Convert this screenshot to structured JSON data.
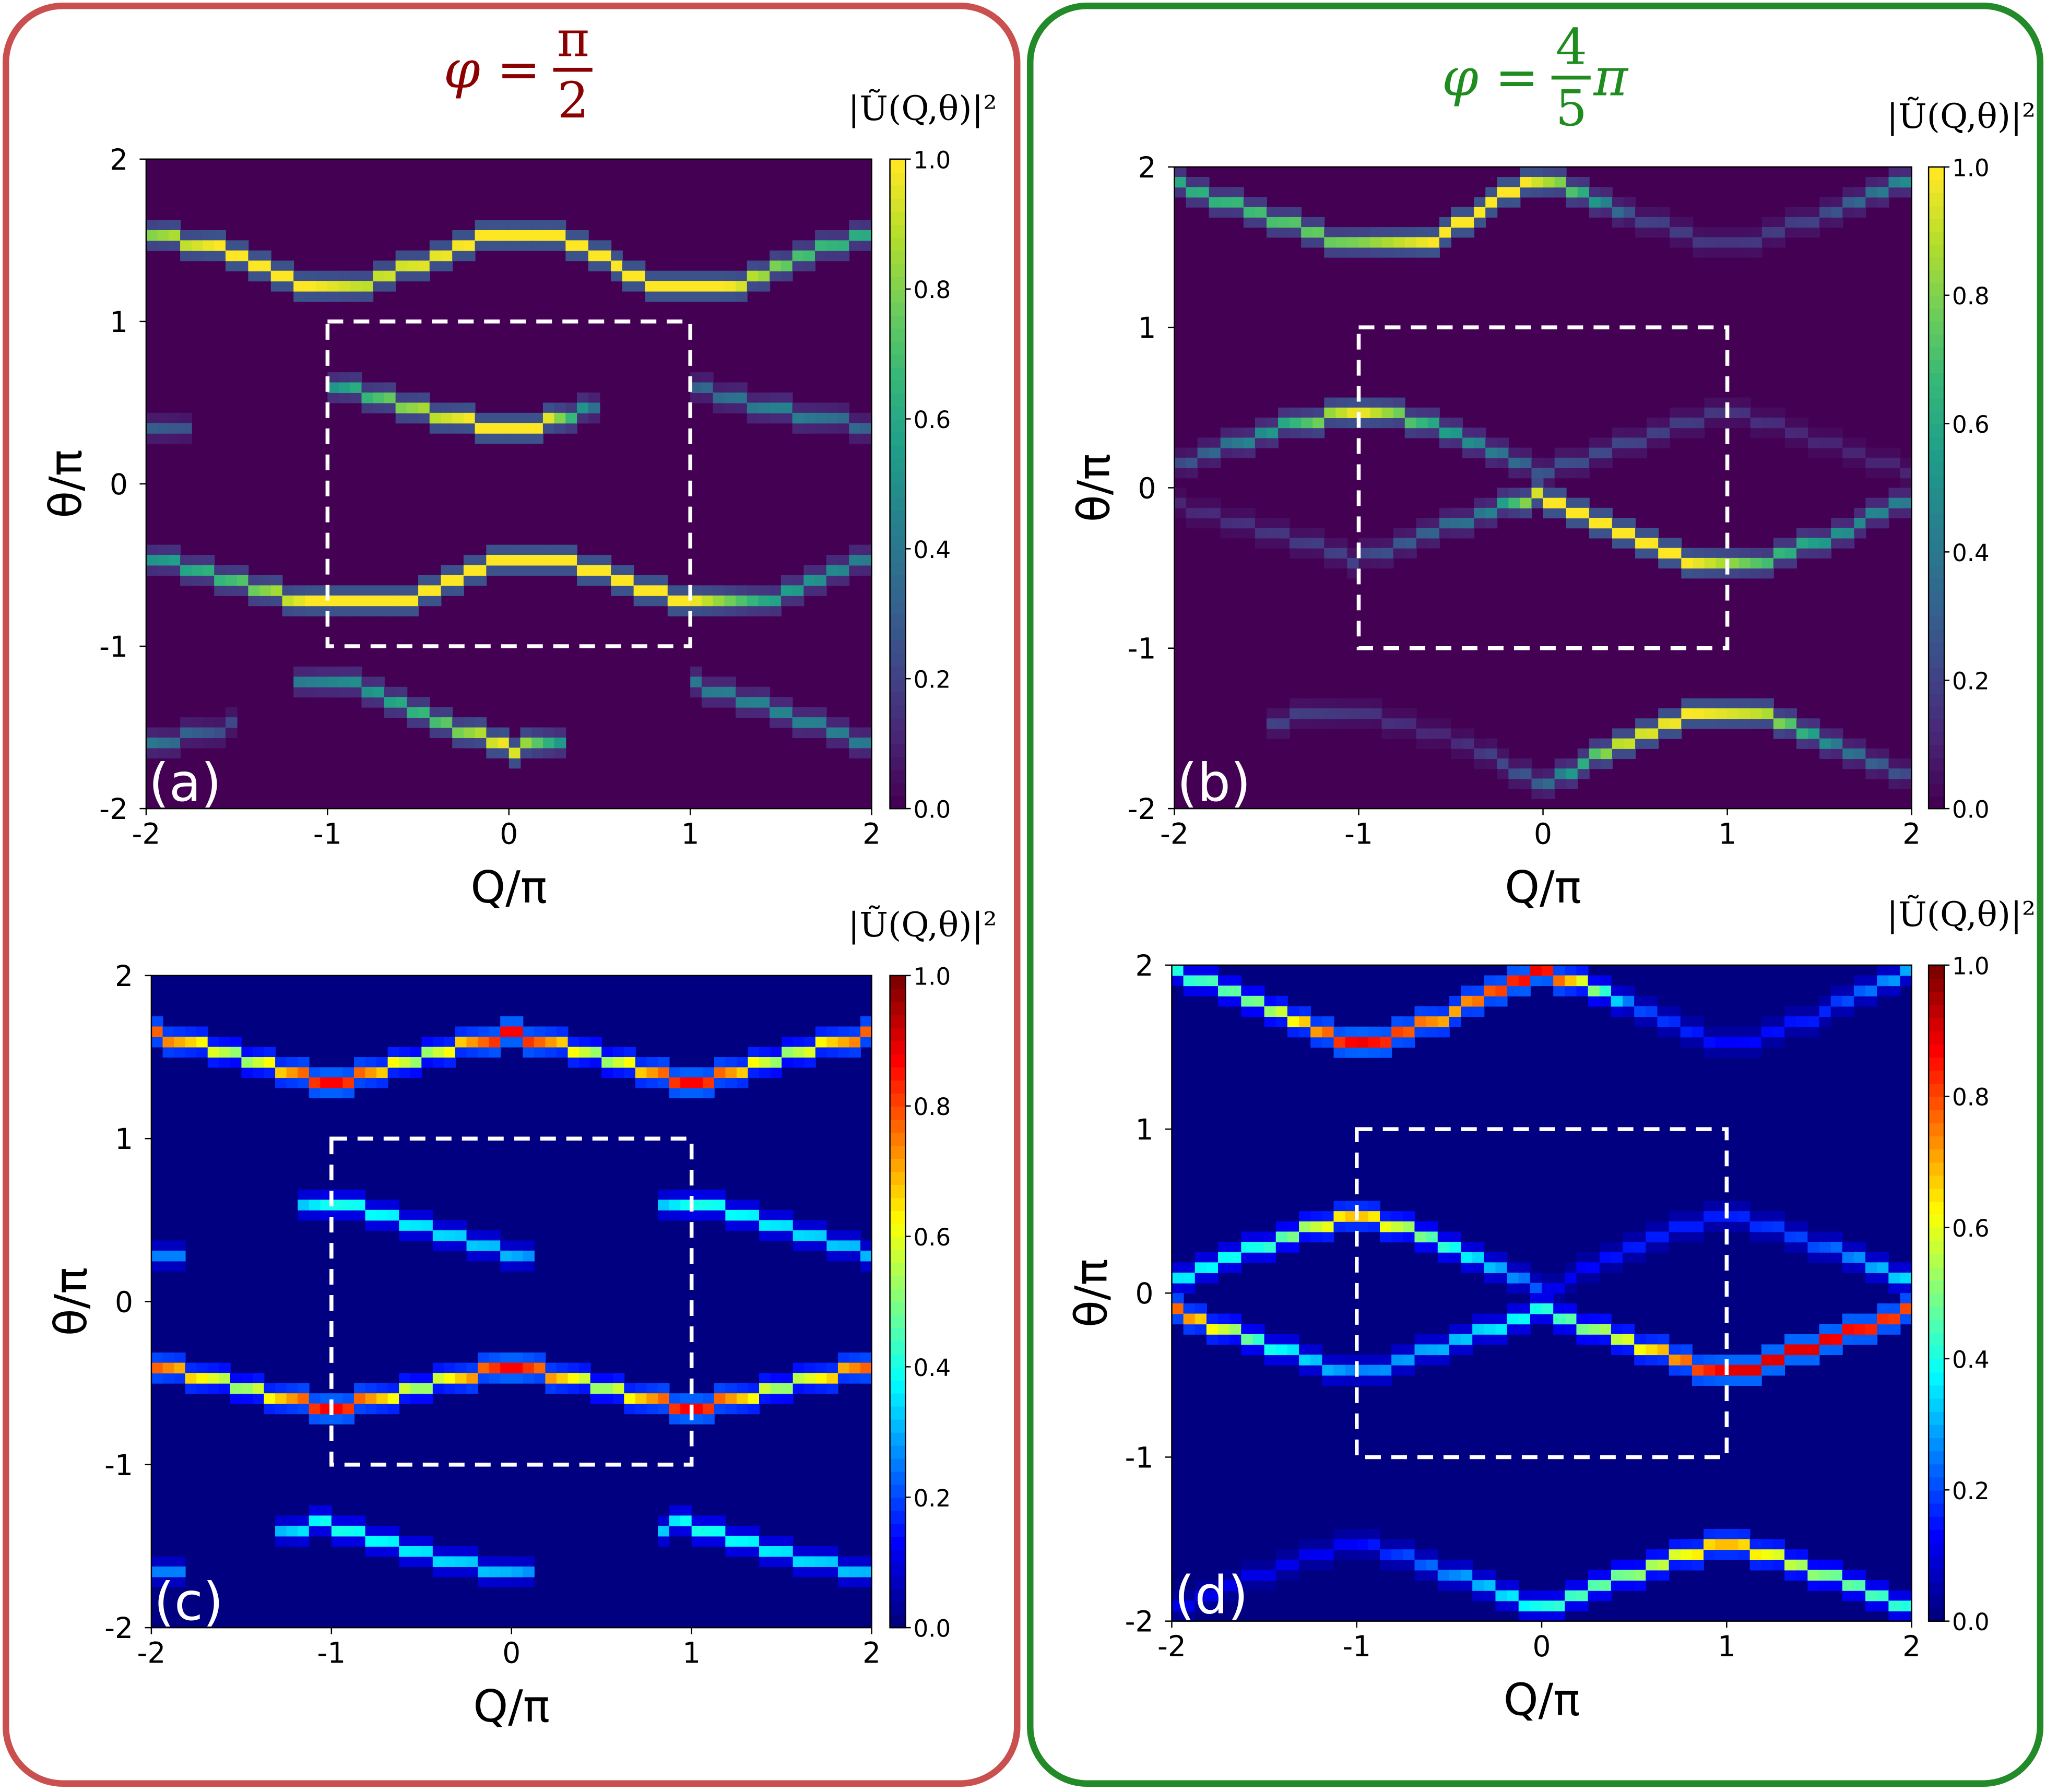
{
  "titles": {
    "left": {
      "prefix": "φ =",
      "numerator": "π",
      "denominator": "2",
      "suffix": "",
      "color": "#8b0000"
    },
    "right": {
      "prefix": "φ =",
      "numerator": "4",
      "denominator": "5",
      "suffix": "π",
      "color": "#1e8c1e"
    }
  },
  "frame_colors": {
    "left": "#c9504f",
    "right": "#238a2a"
  },
  "chart_data": [
    {
      "id": "a",
      "label": "(a)",
      "type": "heatmap",
      "colormap": "viridis",
      "xlabel": "Q/π",
      "ylabel": "θ/π",
      "xlim": [
        -2,
        2
      ],
      "ylim": [
        -2,
        2
      ],
      "xticks": [
        "-2",
        "-1",
        "0",
        "1",
        "2"
      ],
      "yticks": [
        "-2",
        "-1",
        "0",
        "1",
        "2"
      ],
      "colorbar_label": "|Ũ(Q,θ)|²",
      "colorbar_ticks": [
        "0.0",
        "0.2",
        "0.4",
        "0.6",
        "0.8",
        "1.0"
      ],
      "clim": [
        0,
        1
      ],
      "dashed_box": {
        "Q": [
          -1,
          1
        ],
        "theta": [
          -1,
          1
        ]
      },
      "bands": [
        [
          [
            -2,
            1.55,
            0.8
          ],
          [
            -1.6,
            1.45,
            1
          ],
          [
            -1.1,
            1.2,
            1
          ],
          [
            -0.8,
            1.22,
            0.9
          ],
          [
            -0.2,
            1.5,
            1
          ],
          [
            0,
            1.55,
            1
          ],
          [
            0.3,
            1.52,
            1
          ],
          [
            0.8,
            1.22,
            1
          ],
          [
            1.2,
            1.2,
            1
          ],
          [
            1.6,
            1.4,
            0.7
          ],
          [
            2,
            1.55,
            0.6
          ]
        ],
        [
          [
            -2,
            -0.45,
            0.5
          ],
          [
            -1.5,
            -0.6,
            0.7
          ],
          [
            -1.1,
            -0.75,
            1
          ],
          [
            -0.6,
            -0.72,
            1
          ],
          [
            0,
            -0.45,
            1
          ],
          [
            0.4,
            -0.5,
            1
          ],
          [
            1,
            -0.75,
            1
          ],
          [
            1.4,
            -0.72,
            0.6
          ],
          [
            2,
            -0.45,
            0.4
          ]
        ],
        [
          [
            -1,
            0.62,
            0.5
          ],
          [
            -0.6,
            0.5,
            0.8
          ],
          [
            -0.2,
            0.37,
            1
          ],
          [
            0.2,
            0.37,
            1
          ],
          [
            0.5,
            0.5,
            0.3
          ]
        ],
        [
          [
            1,
            0.6,
            0.3
          ],
          [
            1.5,
            0.45,
            0.45
          ],
          [
            2,
            0.35,
            0.3
          ]
        ],
        [
          [
            -2,
            0.35,
            0.3
          ],
          [
            -1.75,
            0.35,
            0.25
          ]
        ],
        [
          [
            -1.2,
            -1.22,
            0.4
          ],
          [
            -0.8,
            -1.25,
            0.5
          ],
          [
            -0.4,
            -1.45,
            0.7
          ],
          [
            0,
            -1.63,
            1
          ],
          [
            0.3,
            -1.6,
            0.5
          ]
        ],
        [
          [
            -2,
            -1.6,
            0.4
          ],
          [
            -1.5,
            -1.48,
            0.2
          ]
        ],
        [
          [
            1,
            -1.22,
            0.4
          ],
          [
            1.5,
            -1.4,
            0.45
          ],
          [
            2,
            -1.6,
            0.4
          ]
        ]
      ]
    },
    {
      "id": "b",
      "label": "(b)",
      "type": "heatmap",
      "colormap": "viridis",
      "xlabel": "Q/π",
      "ylabel": "θ/π",
      "xlim": [
        -2,
        2
      ],
      "ylim": [
        -2,
        2
      ],
      "xticks": [
        "-2",
        "-1",
        "0",
        "1",
        "2"
      ],
      "yticks": [
        "-2",
        "-1",
        "0",
        "1",
        "2"
      ],
      "colorbar_label": "|Ũ(Q,θ)|²",
      "colorbar_ticks": [
        "0.0",
        "0.2",
        "0.4",
        "0.6",
        "0.8",
        "1.0"
      ],
      "clim": [
        0,
        1
      ],
      "dashed_box": {
        "Q": [
          -1,
          1
        ],
        "theta": [
          -1,
          1
        ]
      },
      "bands": [
        [
          [
            -2,
            1.9,
            0.6
          ],
          [
            -1.5,
            1.7,
            0.7
          ],
          [
            -1,
            1.5,
            0.8
          ],
          [
            -0.6,
            1.55,
            1
          ],
          [
            -0.1,
            1.9,
            1
          ],
          [
            0.1,
            1.9,
            0.8
          ],
          [
            0.5,
            1.7,
            0.2
          ],
          [
            1,
            1.5,
            0.15
          ],
          [
            1.5,
            1.7,
            0.2
          ],
          [
            2,
            1.95,
            0.5
          ]
        ],
        [
          [
            -2,
            0.15,
            0.2
          ],
          [
            -1.5,
            0.35,
            0.5
          ],
          [
            -1,
            0.5,
            1
          ],
          [
            -0.6,
            0.4,
            0.6
          ],
          [
            0,
            0.1,
            0.25
          ],
          [
            0.5,
            0.3,
            0.2
          ],
          [
            1,
            0.5,
            0.15
          ],
          [
            1.5,
            0.3,
            0.1
          ],
          [
            2,
            0.1,
            0.1
          ]
        ],
        [
          [
            -2,
            -0.1,
            0.1
          ],
          [
            -1,
            -0.45,
            0.2
          ],
          [
            -0.3,
            -0.15,
            0.4
          ],
          [
            0,
            -0.05,
            1
          ],
          [
            0.4,
            -0.25,
            1
          ],
          [
            0.8,
            -0.45,
            1
          ],
          [
            1.2,
            -0.45,
            0.7
          ],
          [
            1.6,
            -0.3,
            0.5
          ],
          [
            2,
            -0.05,
            0.4
          ]
        ],
        [
          [
            -1.5,
            -1.45,
            0.2
          ],
          [
            -1,
            -1.4,
            0.15
          ],
          [
            -0.5,
            -1.55,
            0.1
          ],
          [
            0,
            -1.85,
            0.3
          ],
          [
            0.4,
            -1.6,
            0.9
          ],
          [
            0.8,
            -1.4,
            1
          ],
          [
            1.2,
            -1.4,
            0.9
          ],
          [
            1.6,
            -1.6,
            0.4
          ],
          [
            2,
            -1.8,
            0.2
          ]
        ]
      ]
    },
    {
      "id": "c",
      "label": "(c)",
      "type": "heatmap",
      "colormap": "jet",
      "xlabel": "Q/π",
      "ylabel": "θ/π",
      "xlim": [
        -2,
        2
      ],
      "ylim": [
        -2,
        2
      ],
      "xticks": [
        "-2",
        "-1",
        "0",
        "1",
        "2"
      ],
      "yticks": [
        "-2",
        "-1",
        "0",
        "1",
        "2"
      ],
      "colorbar_label": "|Ũ(Q,θ)|²",
      "colorbar_ticks": [
        "0.0",
        "0.2",
        "0.4",
        "0.6",
        "0.8",
        "1.0"
      ],
      "clim": [
        0,
        1
      ],
      "dashed_box": {
        "Q": [
          -1,
          1
        ],
        "theta": [
          -1,
          1
        ]
      },
      "bands": [
        [
          [
            -2,
            1.65,
            0.8
          ],
          [
            -1.5,
            1.5,
            0.5
          ],
          [
            -1,
            1.33,
            0.9
          ],
          [
            -0.5,
            1.5,
            0.5
          ],
          [
            0,
            1.65,
            0.9
          ],
          [
            0.5,
            1.5,
            0.5
          ],
          [
            1,
            1.33,
            0.9
          ],
          [
            1.5,
            1.5,
            0.5
          ],
          [
            2,
            1.65,
            0.8
          ]
        ],
        [
          [
            -2,
            -0.38,
            0.8
          ],
          [
            -1.5,
            -0.52,
            0.5
          ],
          [
            -1,
            -0.66,
            0.9
          ],
          [
            -0.5,
            -0.52,
            0.5
          ],
          [
            0,
            -0.38,
            0.9
          ],
          [
            0.5,
            -0.52,
            0.5
          ],
          [
            1,
            -0.66,
            0.9
          ],
          [
            1.5,
            -0.52,
            0.5
          ],
          [
            2,
            -0.38,
            0.8
          ]
        ],
        [
          [
            -1.2,
            0.6,
            0.3
          ],
          [
            -1,
            0.62,
            0.4
          ],
          [
            -0.5,
            0.45,
            0.35
          ],
          [
            0,
            0.3,
            0.3
          ],
          [
            0.15,
            0.3,
            0.25
          ]
        ],
        [
          [
            0.8,
            0.6,
            0.3
          ],
          [
            1,
            0.62,
            0.4
          ],
          [
            1.5,
            0.45,
            0.35
          ],
          [
            2,
            0.3,
            0.3
          ]
        ],
        [
          [
            -2,
            0.3,
            0.25
          ],
          [
            -1.8,
            0.3,
            0.25
          ]
        ],
        [
          [
            -1.3,
            -1.38,
            0.3
          ],
          [
            -1,
            -1.37,
            0.4
          ],
          [
            -0.5,
            -1.55,
            0.35
          ],
          [
            0,
            -1.68,
            0.3
          ],
          [
            0.15,
            -1.68,
            0.25
          ]
        ],
        [
          [
            0.8,
            -1.38,
            0.3
          ],
          [
            1,
            -1.37,
            0.4
          ],
          [
            1.5,
            -1.55,
            0.35
          ],
          [
            2,
            -1.68,
            0.3
          ]
        ],
        [
          [
            -2,
            -1.68,
            0.25
          ],
          [
            -1.8,
            -1.68,
            0.25
          ]
        ]
      ]
    },
    {
      "id": "d",
      "label": "(d)",
      "type": "heatmap",
      "colormap": "jet",
      "xlabel": "Q/π",
      "ylabel": "θ/π",
      "xlim": [
        -2,
        2
      ],
      "ylim": [
        -2,
        2
      ],
      "xticks": [
        "-2",
        "-1",
        "0",
        "1",
        "2"
      ],
      "yticks": [
        "-2",
        "-1",
        "0",
        "1",
        "2"
      ],
      "colorbar_label": "|Ũ(Q,θ)|²",
      "colorbar_ticks": [
        "0.0",
        "0.2",
        "0.4",
        "0.6",
        "0.8",
        "1.0"
      ],
      "clim": [
        0,
        1
      ],
      "dashed_box": {
        "Q": [
          -1,
          1
        ],
        "theta": [
          -1,
          1
        ]
      },
      "bands": [
        [
          [
            -2,
            1.98,
            0.4
          ],
          [
            -1.5,
            1.75,
            0.5
          ],
          [
            -1,
            1.5,
            0.9
          ],
          [
            -0.5,
            1.7,
            0.7
          ],
          [
            0,
            1.98,
            0.9
          ],
          [
            0.5,
            1.75,
            0.2
          ],
          [
            1,
            1.5,
            0.12
          ],
          [
            1.5,
            1.7,
            0.15
          ],
          [
            2,
            1.98,
            0.3
          ]
        ],
        [
          [
            -2,
            0.05,
            0.35
          ],
          [
            -1.5,
            0.3,
            0.4
          ],
          [
            -1,
            0.5,
            0.7
          ],
          [
            -0.5,
            0.3,
            0.4
          ],
          [
            0,
            0.02,
            0.2
          ]
        ],
        [
          [
            0,
            0.0,
            0.1
          ],
          [
            0.5,
            0.3,
            0.15
          ],
          [
            1,
            0.5,
            0.15
          ],
          [
            1.5,
            0.3,
            0.2
          ],
          [
            2,
            0.05,
            0.35
          ]
        ],
        [
          [
            -2,
            -0.1,
            0.8
          ],
          [
            -1.5,
            -0.3,
            0.4
          ],
          [
            -1,
            -0.5,
            0.25
          ],
          [
            -0.5,
            -0.3,
            0.3
          ],
          [
            0,
            -0.1,
            0.4
          ],
          [
            0.5,
            -0.3,
            0.6
          ],
          [
            1,
            -0.5,
            0.9
          ],
          [
            1.5,
            -0.3,
            0.9
          ],
          [
            2,
            -0.1,
            0.8
          ]
        ],
        [
          [
            -2,
            -1.92,
            0.1
          ],
          [
            -1.5,
            -1.7,
            0.1
          ],
          [
            -1,
            -1.5,
            0.12
          ],
          [
            -0.5,
            -1.7,
            0.25
          ],
          [
            0,
            -1.92,
            0.4
          ],
          [
            0.5,
            -1.7,
            0.5
          ],
          [
            1,
            -1.5,
            0.7
          ],
          [
            1.5,
            -1.7,
            0.5
          ],
          [
            2,
            -1.92,
            0.4
          ]
        ]
      ]
    }
  ]
}
